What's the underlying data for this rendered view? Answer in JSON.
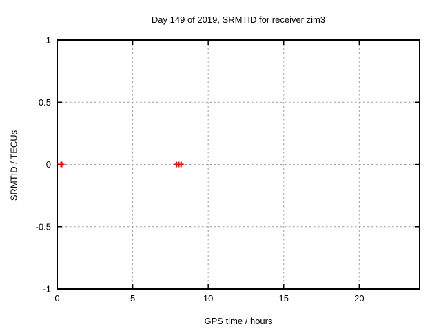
{
  "chart_data": {
    "type": "scatter",
    "title": "Day 149 of 2019, SRMTID for receiver zim3",
    "xlabel": "GPS time / hours",
    "ylabel": "SRMTID / TECUs",
    "xlim": [
      0,
      24
    ],
    "ylim": [
      -1,
      1
    ],
    "x_ticks": [
      0,
      5,
      10,
      15,
      20
    ],
    "x_tick_labels": [
      "0",
      "5",
      "10",
      "15",
      "20"
    ],
    "y_ticks": [
      1,
      0.5,
      0,
      -0.5,
      -1
    ],
    "y_tick_labels": [
      "1",
      "0.5",
      "0",
      "-0.5",
      "-1"
    ],
    "grid": true,
    "legend": false,
    "background_color": "#ffffff",
    "border_color": "#000000",
    "grid_color": "#9c9c9c",
    "marker": "plus",
    "marker_color": "#ff0000",
    "series": [
      {
        "name": "SRMTID",
        "x": [
          0.25,
          0.3,
          7.9,
          8.05,
          8.2
        ],
        "y": [
          0,
          0,
          0,
          0,
          0
        ]
      }
    ]
  }
}
